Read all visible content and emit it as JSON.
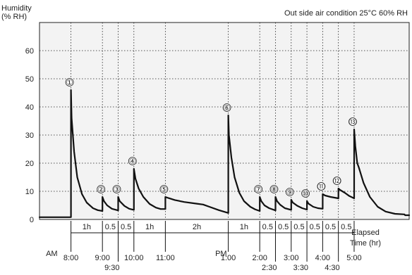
{
  "chart_data": {
    "type": "line",
    "ylabel": "Humidity\n(% RH)",
    "condition_note": "Out side air condition 25°C 60% RH",
    "xlabel": "Elapsed\nTime (hr)",
    "ylim": [
      0,
      70
    ],
    "yticks": [
      "0",
      "10",
      "20",
      "30",
      "40",
      "50",
      "60"
    ],
    "grid": true,
    "x_start": "7:00",
    "x_end": "5:45",
    "am_marker": "AM",
    "pm_marker": "PM",
    "time_ticks": [
      {
        "hour": 8.0,
        "label": "8:00",
        "row": 1
      },
      {
        "hour": 9.0,
        "label": "9:00",
        "row": 1
      },
      {
        "hour": 9.5,
        "label": "9:30",
        "row": 2
      },
      {
        "hour": 10.0,
        "label": "10:00",
        "row": 1
      },
      {
        "hour": 11.0,
        "label": "11:00",
        "row": 1
      },
      {
        "hour": 13.0,
        "label": "1:00",
        "row": 1
      },
      {
        "hour": 14.0,
        "label": "2:00",
        "row": 1
      },
      {
        "hour": 14.5,
        "label": "2:30",
        "row": 2
      },
      {
        "hour": 15.0,
        "label": "3:00",
        "row": 1
      },
      {
        "hour": 15.5,
        "label": "3:30",
        "row": 2
      },
      {
        "hour": 16.0,
        "label": "4:00",
        "row": 1
      },
      {
        "hour": 16.5,
        "label": "4:30",
        "row": 2
      },
      {
        "hour": 17.0,
        "label": "5:00",
        "row": 1
      }
    ],
    "intervals": [
      {
        "from": 8.0,
        "to": 9.0,
        "label": "1h"
      },
      {
        "from": 9.0,
        "to": 9.5,
        "label": "0.5"
      },
      {
        "from": 9.5,
        "to": 10.0,
        "label": "0.5"
      },
      {
        "from": 10.0,
        "to": 11.0,
        "label": "1h"
      },
      {
        "from": 11.0,
        "to": 13.0,
        "label": "2h"
      },
      {
        "from": 13.0,
        "to": 14.0,
        "label": "1h"
      },
      {
        "from": 14.0,
        "to": 14.5,
        "label": "0.5"
      },
      {
        "from": 14.5,
        "to": 15.0,
        "label": "0.5"
      },
      {
        "from": 15.0,
        "to": 15.5,
        "label": "0.5"
      },
      {
        "from": 15.5,
        "to": 16.0,
        "label": "0.5"
      },
      {
        "from": 16.0,
        "to": 16.5,
        "label": "0.5"
      },
      {
        "from": 16.5,
        "to": 17.0,
        "label": "0.5"
      }
    ],
    "events": [
      {
        "label": "①",
        "hour": 8.0,
        "peak": 46
      },
      {
        "label": "②",
        "hour": 9.0,
        "peak": 8
      },
      {
        "label": "③",
        "hour": 9.5,
        "peak": 8
      },
      {
        "label": "④",
        "hour": 10.0,
        "peak": 18
      },
      {
        "label": "⑤",
        "hour": 11.0,
        "peak": 8
      },
      {
        "label": "⑥",
        "hour": 13.0,
        "peak": 37
      },
      {
        "label": "⑦",
        "hour": 14.0,
        "peak": 8
      },
      {
        "label": "⑧",
        "hour": 14.5,
        "peak": 8
      },
      {
        "label": "⑨",
        "hour": 15.0,
        "peak": 7
      },
      {
        "label": "⑩",
        "hour": 15.5,
        "peak": 6.5
      },
      {
        "label": "⑪",
        "hour": 16.0,
        "peak": 9
      },
      {
        "label": "⑫",
        "hour": 16.5,
        "peak": 11
      },
      {
        "label": "⑬",
        "hour": 17.0,
        "peak": 32
      }
    ],
    "series": [
      {
        "points": [
          [
            7.0,
            0.8
          ],
          [
            8.0,
            0.8
          ],
          [
            8.0,
            46
          ],
          [
            8.02,
            36
          ],
          [
            8.1,
            24
          ],
          [
            8.2,
            15
          ],
          [
            8.35,
            9
          ],
          [
            8.5,
            6
          ],
          [
            8.7,
            4
          ],
          [
            8.85,
            3.3
          ],
          [
            9.0,
            3
          ],
          [
            9.0,
            8
          ],
          [
            9.05,
            6.5
          ],
          [
            9.15,
            5
          ],
          [
            9.3,
            3.8
          ],
          [
            9.5,
            3.2
          ],
          [
            9.5,
            8
          ],
          [
            9.55,
            6.5
          ],
          [
            9.7,
            4.8
          ],
          [
            9.85,
            3.8
          ],
          [
            10.0,
            3.4
          ],
          [
            10.0,
            18
          ],
          [
            10.05,
            14.5
          ],
          [
            10.15,
            11
          ],
          [
            10.3,
            8
          ],
          [
            10.5,
            5.5
          ],
          [
            10.7,
            4.2
          ],
          [
            10.85,
            3.7
          ],
          [
            11.0,
            3.7
          ],
          [
            11.0,
            8
          ],
          [
            11.1,
            7.6
          ],
          [
            11.3,
            6.9
          ],
          [
            11.6,
            6.2
          ],
          [
            12.0,
            5.6
          ],
          [
            12.2,
            5.3
          ],
          [
            12.4,
            4.5
          ],
          [
            12.7,
            3.3
          ],
          [
            13.0,
            2.3
          ],
          [
            13.0,
            37
          ],
          [
            13.02,
            30
          ],
          [
            13.1,
            22
          ],
          [
            13.2,
            15
          ],
          [
            13.35,
            9.5
          ],
          [
            13.5,
            6.5
          ],
          [
            13.7,
            4.5
          ],
          [
            13.85,
            3.6
          ],
          [
            14.0,
            3
          ],
          [
            14.0,
            8
          ],
          [
            14.05,
            6.5
          ],
          [
            14.15,
            5
          ],
          [
            14.3,
            4
          ],
          [
            14.5,
            3.2
          ],
          [
            14.5,
            8
          ],
          [
            14.55,
            6.5
          ],
          [
            14.65,
            5.2
          ],
          [
            14.8,
            4
          ],
          [
            15.0,
            3.4
          ],
          [
            15.0,
            7
          ],
          [
            15.05,
            6
          ],
          [
            15.2,
            4.8
          ],
          [
            15.35,
            4
          ],
          [
            15.5,
            3.5
          ],
          [
            15.5,
            6.5
          ],
          [
            15.55,
            5.6
          ],
          [
            15.7,
            4.5
          ],
          [
            15.85,
            4
          ],
          [
            16.0,
            3.8
          ],
          [
            16.0,
            9
          ],
          [
            16.08,
            8.5
          ],
          [
            16.25,
            8
          ],
          [
            16.5,
            7.5
          ],
          [
            16.5,
            11
          ],
          [
            16.55,
            10.5
          ],
          [
            16.7,
            9.5
          ],
          [
            16.85,
            8.3
          ],
          [
            17.0,
            7.5
          ],
          [
            17.0,
            32
          ],
          [
            17.04,
            26
          ],
          [
            17.1,
            20
          ],
          [
            17.15,
            18.5
          ],
          [
            17.3,
            13
          ],
          [
            17.5,
            8
          ],
          [
            17.75,
            4.5
          ],
          [
            18.0,
            2.8
          ],
          [
            18.3,
            2
          ],
          [
            18.6,
            1.8
          ],
          [
            18.62,
            1.5
          ],
          [
            18.75,
            1.5
          ]
        ]
      }
    ]
  }
}
